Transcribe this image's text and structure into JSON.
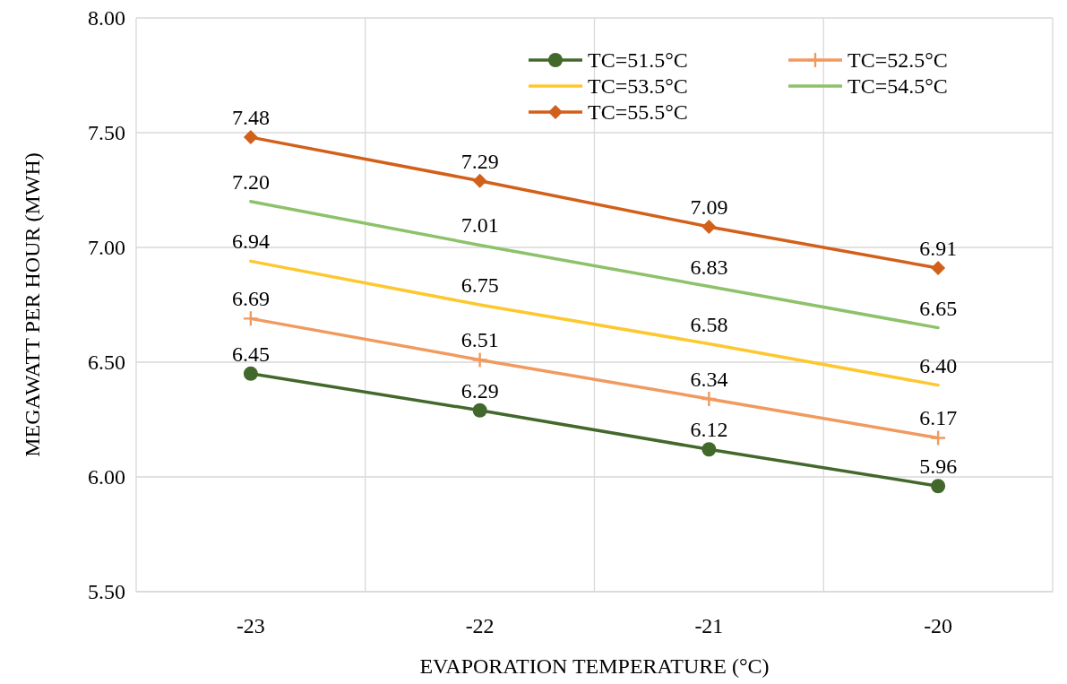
{
  "chart_data": {
    "type": "line",
    "xlabel": "EVAPORATION TEMPERATURE (°C)",
    "ylabel": "MEGAWATT PER HOUR (MWH)",
    "categories": [
      "-23",
      "-22",
      "-21",
      "-20"
    ],
    "ylim": [
      5.5,
      8
    ],
    "yticks": [
      {
        "value": 5.5,
        "label": "5.50"
      },
      {
        "value": 6,
        "label": "6.00"
      },
      {
        "value": 6.5,
        "label": "6.50"
      },
      {
        "value": 7,
        "label": "7.00"
      },
      {
        "value": 7.5,
        "label": "7.50"
      },
      {
        "value": 8,
        "label": "8.00"
      }
    ],
    "grid": true,
    "legend": "top right",
    "line_style": "solid",
    "series": [
      {
        "name": "TC=51.5°C",
        "color": "#43682b",
        "marker": "circle",
        "values": [
          6.45,
          6.29,
          6.12,
          5.96
        ],
        "value_labels": [
          "6.45",
          "6.29",
          "6.12",
          "5.96"
        ]
      },
      {
        "name": "TC=52.5°C",
        "color": "#f19a5f",
        "marker": "cross",
        "values": [
          6.69,
          6.51,
          6.34,
          6.17
        ],
        "value_labels": [
          "6.69",
          "6.51",
          "6.34",
          "6.17"
        ]
      },
      {
        "name": "TC=53.5°C",
        "color": "#fdc82f",
        "marker": "none",
        "values": [
          6.94,
          6.75,
          6.58,
          6.4
        ],
        "value_labels": [
          "6.94",
          "6.75",
          "6.58",
          "6.40"
        ]
      },
      {
        "name": "TC=54.5°C",
        "color": "#8dc26b",
        "marker": "none",
        "values": [
          7.2,
          7.01,
          6.83,
          6.65
        ],
        "value_labels": [
          "7.20",
          "7.01",
          "6.83",
          "6.65"
        ]
      },
      {
        "name": "TC=55.5°C",
        "color": "#d2601a",
        "marker": "diamond",
        "values": [
          7.48,
          7.29,
          7.09,
          6.91
        ],
        "value_labels": [
          "7.48",
          "7.29",
          "7.09",
          "6.91"
        ]
      }
    ]
  }
}
